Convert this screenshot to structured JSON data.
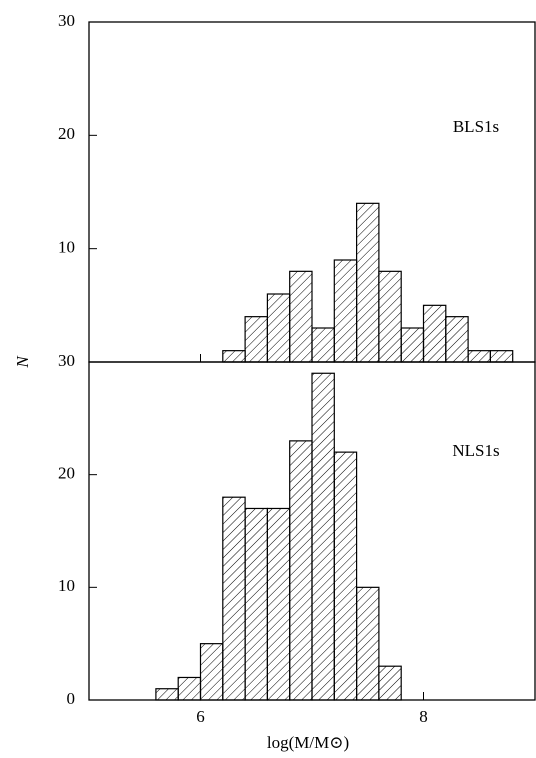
{
  "chart_data": [
    {
      "type": "histogram",
      "annotation": "BLS1s",
      "y_label": "N",
      "bins": [
        6.2,
        6.4,
        6.6,
        6.8,
        7.0,
        7.2,
        7.4,
        7.6,
        7.8,
        8.0,
        8.2,
        8.4,
        8.6,
        8.8
      ],
      "counts": [
        1,
        4,
        6,
        8,
        3,
        9,
        14,
        8,
        3,
        5,
        4,
        1,
        1
      ],
      "xlim": [
        5,
        9
      ],
      "ylim": [
        0,
        30
      ],
      "yticks": [
        10,
        20,
        30
      ],
      "xticks": [
        6,
        8
      ]
    },
    {
      "type": "histogram",
      "annotation": "NLS1s",
      "x_label": "log(M/M⊙)",
      "bins": [
        5.6,
        5.8,
        6.0,
        6.2,
        6.4,
        6.6,
        6.8,
        7.0,
        7.2,
        7.4,
        7.6,
        7.8
      ],
      "counts": [
        1,
        2,
        5,
        18,
        17,
        17,
        23,
        29,
        22,
        10,
        3
      ],
      "xlim": [
        5,
        9
      ],
      "ylim": [
        0,
        30
      ],
      "yticks": [
        0,
        10,
        20,
        30
      ],
      "xticks": [
        6,
        8
      ]
    }
  ]
}
